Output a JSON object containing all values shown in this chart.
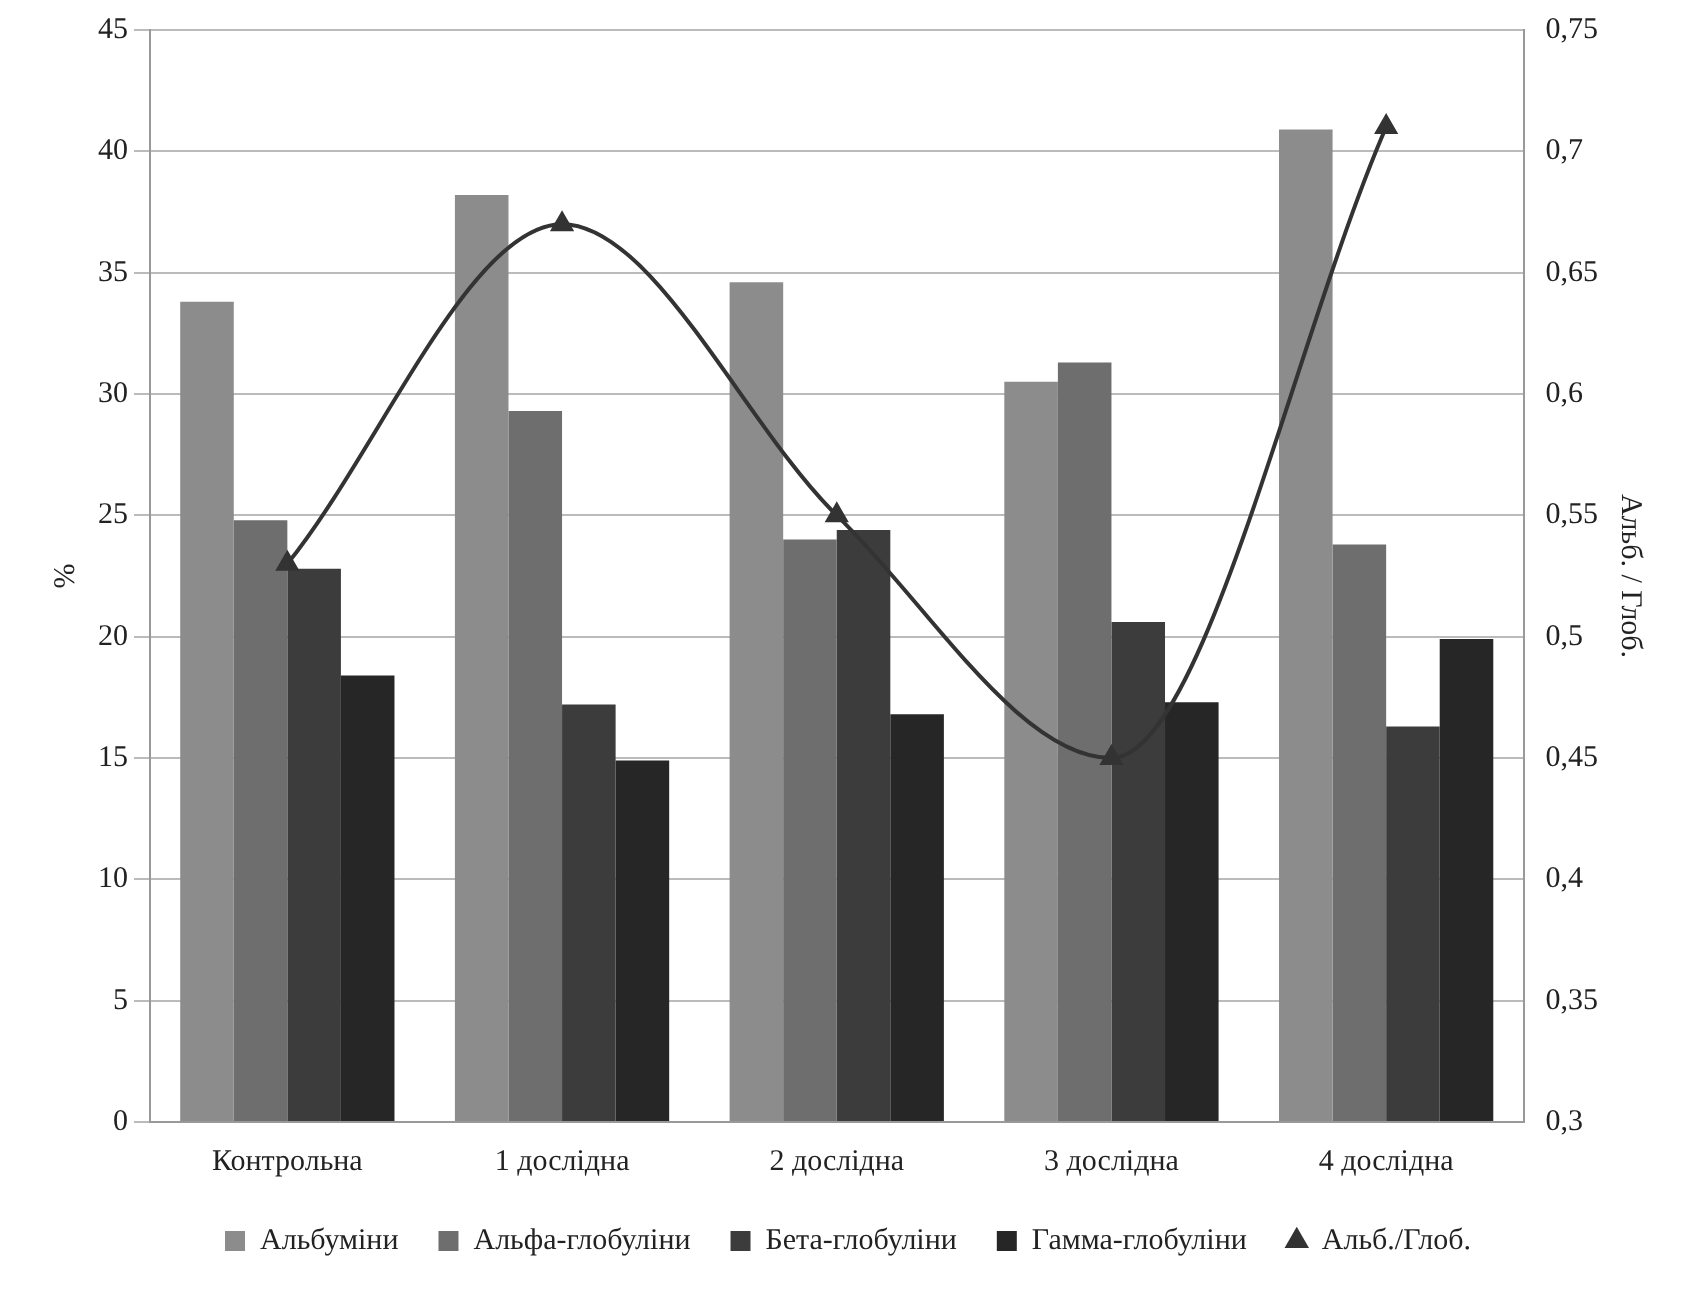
{
  "chart_data": {
    "type": "bar",
    "categories": [
      "Контрольна",
      "1 дослідна",
      "2 дослідна",
      "3 дослідна",
      "4 дослідна"
    ],
    "series": [
      {
        "name": "Альбуміни",
        "color": "#8c8c8c",
        "values": [
          33.8,
          38.2,
          34.6,
          30.5,
          40.9
        ]
      },
      {
        "name": "Альфа-глобуліни",
        "color": "#6e6e6e",
        "values": [
          24.8,
          29.3,
          24.0,
          31.3,
          23.8
        ]
      },
      {
        "name": "Бета-глобуліни",
        "color": "#3c3c3c",
        "values": [
          22.8,
          17.2,
          24.4,
          20.6,
          16.3
        ]
      },
      {
        "name": "Гамма-глобуліни",
        "color": "#262626",
        "values": [
          18.4,
          14.9,
          16.8,
          17.3,
          19.9
        ]
      },
      {
        "name": "Альб./Глоб.",
        "type": "line",
        "axis": "y2",
        "color": "#333333",
        "marker": "triangle",
        "values": [
          0.53,
          0.67,
          0.55,
          0.45,
          0.71
        ]
      }
    ],
    "ylabel": "%",
    "y2label": "Альб. / Глоб.",
    "ylim": [
      0,
      45
    ],
    "yticks": [
      0,
      5,
      10,
      15,
      20,
      25,
      30,
      35,
      40,
      45
    ],
    "y2lim": [
      0.3,
      0.75
    ],
    "y2ticks": [
      {
        "value": 0.3,
        "label": "0,3"
      },
      {
        "value": 0.35,
        "label": "0,35"
      },
      {
        "value": 0.4,
        "label": "0,4"
      },
      {
        "value": 0.45,
        "label": "0,45"
      },
      {
        "value": 0.5,
        "label": "0,5"
      },
      {
        "value": 0.55,
        "label": "0,55"
      },
      {
        "value": 0.6,
        "label": "0,6"
      },
      {
        "value": 0.65,
        "label": "0,65"
      },
      {
        "value": 0.7,
        "label": "0,7"
      },
      {
        "value": 0.75,
        "label": "0,75"
      }
    ],
    "grid": "y",
    "legend": "bottom"
  }
}
